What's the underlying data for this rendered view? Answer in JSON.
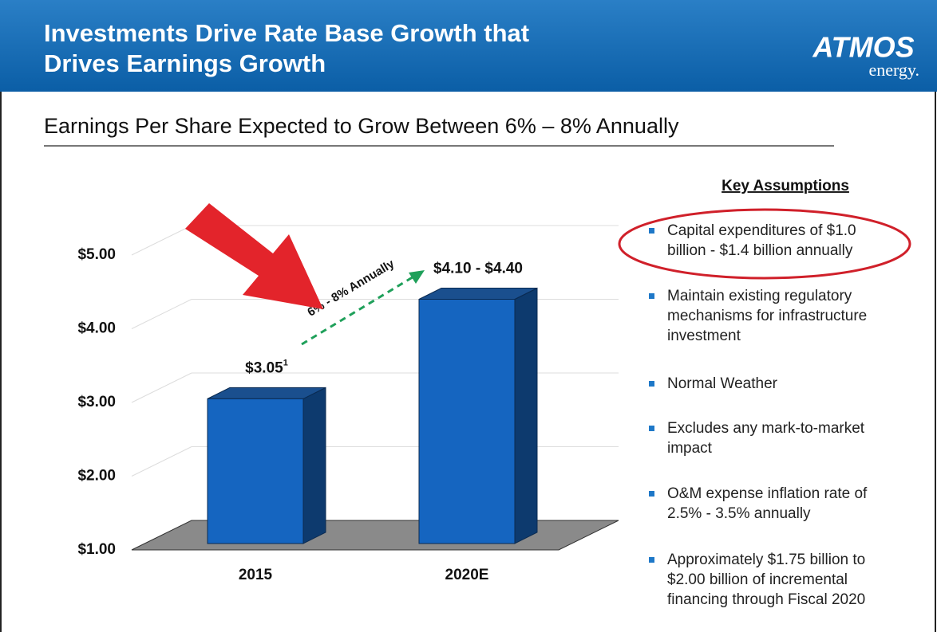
{
  "header": {
    "title_lines": [
      "Investments Drive Rate Base Growth that",
      "Drives Earnings Growth"
    ],
    "logo": {
      "name": "ATMOS",
      "tagline": "energy."
    }
  },
  "subtitle": "Earnings Per Share Expected to Grow Between 6% – 8% Annually",
  "chart_data": {
    "type": "bar3d",
    "categories": [
      "2015",
      "2020E"
    ],
    "values": [
      3.05,
      4.4
    ],
    "value_labels": [
      "$3.05",
      "$4.10 - $4.40"
    ],
    "footnote_mark": "1",
    "color": "#1565c0",
    "ylim": [
      1,
      5
    ],
    "yticks": [
      {
        "value": 1,
        "label": "$1.00"
      },
      {
        "value": 2,
        "label": "$2.00"
      },
      {
        "value": 3,
        "label": "$3.00"
      },
      {
        "value": 4,
        "label": "$4.00"
      },
      {
        "value": 5,
        "label": "$5.00"
      }
    ],
    "grid": true,
    "annotation": "6% - 8% Annually"
  },
  "assumptions": {
    "heading": "Key Assumptions",
    "bullets": [
      [
        "Capital expenditures of $1.0",
        "billion - $1.4 billion annually"
      ],
      [
        "Maintain existing regulatory",
        "mechanisms for infrastructure",
        "investment"
      ],
      [
        "Normal Weather"
      ],
      [
        "Excludes any mark-to-market",
        "impact"
      ],
      [
        "O&M expense inflation rate of",
        "2.5% - 3.5% annually"
      ],
      [
        "Approximately $1.75 billion to",
        "$2.00 billion of incremental",
        "financing through Fiscal 2020"
      ]
    ]
  }
}
